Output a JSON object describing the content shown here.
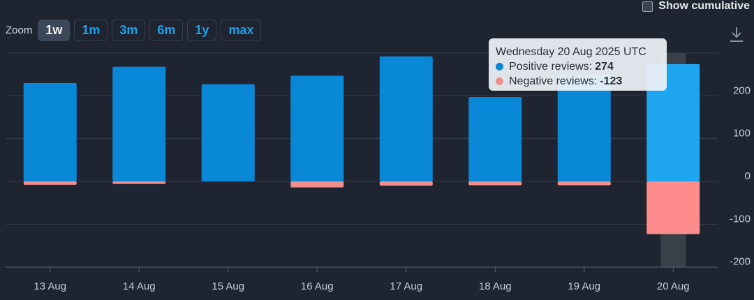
{
  "zoom": {
    "label": "Zoom",
    "options": [
      "1w",
      "1m",
      "3m",
      "6m",
      "1y",
      "max"
    ],
    "active": "1w"
  },
  "cumulative_label": "Show cumulative",
  "colors": {
    "positive": "#0a88d8",
    "positive_highlight": "#1ea5f0",
    "negative": "#f08d8d",
    "negative_highlight": "#ff8c8c",
    "grid": "#343d4a",
    "hover_band": "#3a4048"
  },
  "tooltip": {
    "date": "Wednesday 20 Aug 2025 UTC",
    "positive_label": "Positive reviews:",
    "positive_value": "274",
    "negative_label": "Negative reviews:",
    "negative_value": "-123"
  },
  "chart_data": {
    "type": "bar",
    "stacked": true,
    "categories": [
      "13 Aug",
      "14 Aug",
      "15 Aug",
      "16 Aug",
      "17 Aug",
      "18 Aug",
      "19 Aug",
      "20 Aug"
    ],
    "series": [
      {
        "name": "Positive reviews",
        "values": [
          230,
          268,
          227,
          247,
          292,
          197,
          250,
          274
        ]
      },
      {
        "name": "Negative reviews",
        "values": [
          -8,
          -6,
          0,
          -14,
          -10,
          -9,
          -9,
          -123
        ]
      }
    ],
    "y_ticks": [
      "-200",
      "-100",
      "0",
      "100",
      "200"
    ],
    "ylim": [
      -200,
      300
    ],
    "y_axis_side": "right",
    "grid": true,
    "highlighted_category": "20 Aug"
  }
}
